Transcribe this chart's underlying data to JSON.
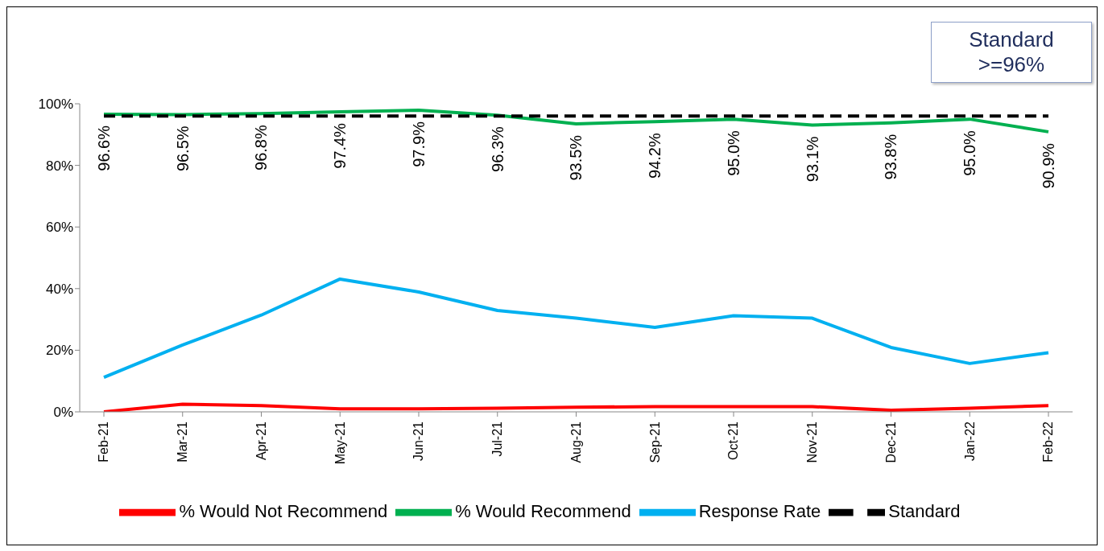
{
  "chart_data": {
    "type": "line",
    "categories": [
      "Feb-21",
      "Mar-21",
      "Apr-21",
      "May-21",
      "Jun-21",
      "Jul-21",
      "Aug-21",
      "Sep-21",
      "Oct-21",
      "Nov-21",
      "Dec-21",
      "Jan-22",
      "Feb-22"
    ],
    "series": [
      {
        "name": "Response Rate",
        "color": "#00b0f0",
        "values": [
          11.2,
          21.7,
          31.4,
          43.1,
          38.9,
          32.9,
          30.4,
          27.4,
          31.2,
          30.4,
          20.9,
          15.7,
          19.2
        ]
      },
      {
        "name": "% Would Recommend",
        "color": "#00b050",
        "values": [
          96.6,
          96.5,
          96.8,
          97.4,
          97.9,
          96.3,
          93.5,
          94.2,
          95.0,
          93.1,
          93.8,
          95.0,
          90.9
        ],
        "value_labels": [
          "96.6%",
          "96.5%",
          "96.8%",
          "97.4%",
          "97.9%",
          "96.3%",
          "93.5%",
          "94.2%",
          "95.0%",
          "93.1%",
          "93.8%",
          "95.0%",
          "90.9%"
        ]
      },
      {
        "name": "% Would Not Recommend",
        "color": "#ff0000",
        "values": [
          0,
          2.5,
          2,
          1,
          1,
          1.2,
          1.5,
          1.7,
          1.7,
          1.7,
          0.5,
          1.2,
          2
        ]
      },
      {
        "name": "Standard",
        "color": "#000000",
        "line_style": "dashed",
        "values": [
          96,
          96,
          96,
          96,
          96,
          96,
          96,
          96,
          96,
          96,
          96,
          96,
          96
        ]
      }
    ],
    "ylim": [
      0,
      100
    ],
    "yticks": [
      {
        "value": 0,
        "label": "0%"
      },
      {
        "value": 20,
        "label": "20%"
      },
      {
        "value": 40,
        "label": "40%"
      },
      {
        "value": 60,
        "label": "60%"
      },
      {
        "value": 80,
        "label": "80%"
      },
      {
        "value": 100,
        "label": "100%"
      }
    ],
    "annotations": [
      "Standard >=96%"
    ],
    "legend": "bottom",
    "grid": false,
    "marker": "none"
  }
}
